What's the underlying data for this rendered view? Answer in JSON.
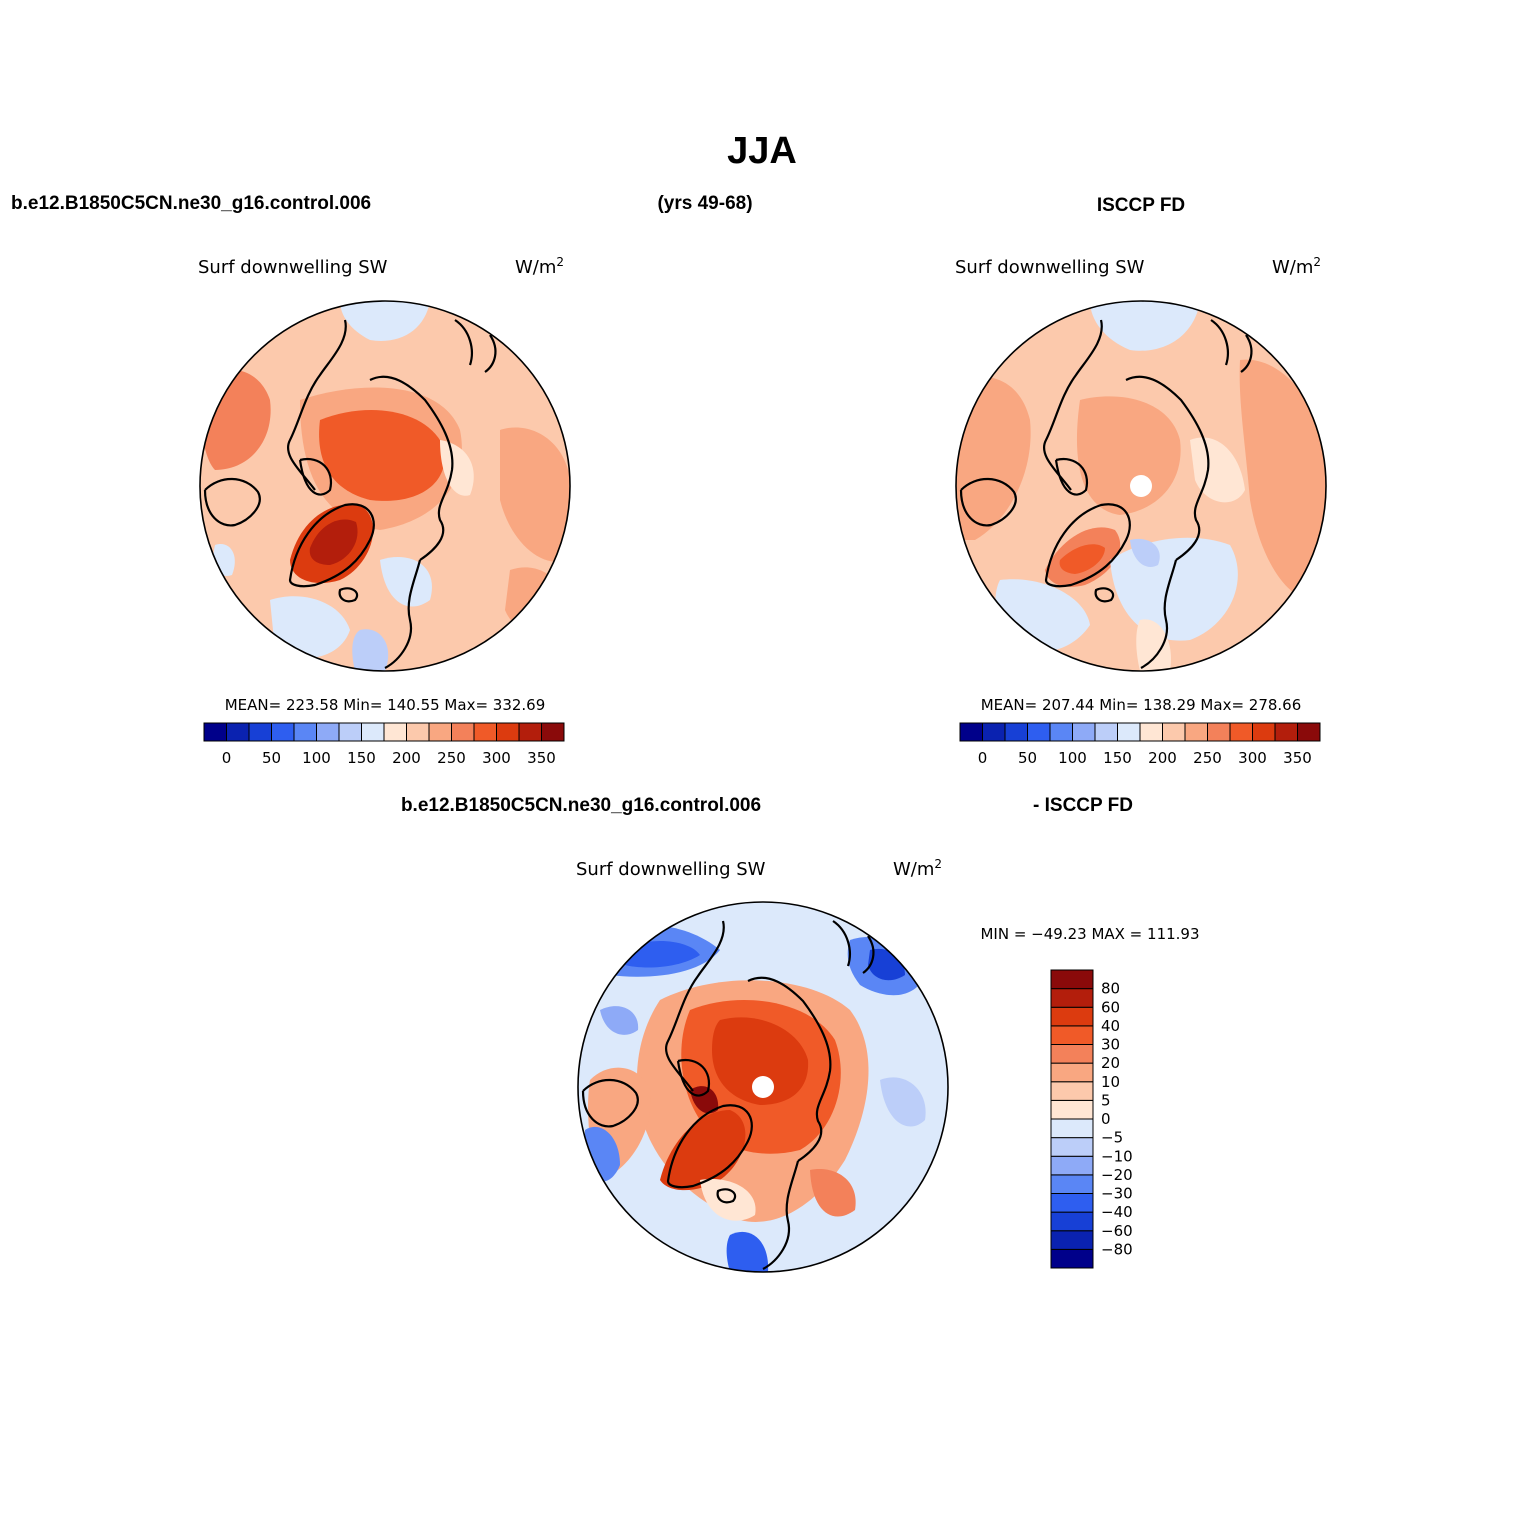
{
  "figure": {
    "title": "JJA",
    "header_case": "b.e12.B1850C5CN.ne30_g16.control.006",
    "header_years": "(yrs 49-68)",
    "header_obs": "ISCCP FD",
    "diff_header_case": "b.e12.B1850C5CN.ne30_g16.control.006",
    "diff_header_obs": "- ISCCP FD"
  },
  "panels": [
    {
      "id": "model",
      "variable": "Surf downwelling SW",
      "units": "W/m",
      "units_exp": "2",
      "stats": "MEAN= 223.58   Min= 140.55   Max= 332.69"
    },
    {
      "id": "obs",
      "variable": "Surf downwelling SW",
      "units": "W/m",
      "units_exp": "2",
      "stats": "MEAN= 207.44   Min= 138.29   Max= 278.66"
    },
    {
      "id": "diff",
      "variable": "Surf downwelling SW",
      "units": "W/m",
      "units_exp": "2",
      "stats": "MIN = −49.23 MAX = 111.93"
    }
  ],
  "abs_colorbar": {
    "colors": [
      "#00008a",
      "#0a22b0",
      "#1740d6",
      "#2e5ef0",
      "#5a86f5",
      "#8eaaf7",
      "#bccef9",
      "#dce9fb",
      "#ffe6d4",
      "#fcc9ac",
      "#f9a781",
      "#f3815a",
      "#f05a28",
      "#dc3b0f",
      "#b31e0c",
      "#8a0a0a"
    ],
    "labels": [
      "0",
      "50",
      "100",
      "150",
      "200",
      "250",
      "300",
      "350"
    ]
  },
  "diff_colorbar": {
    "colors": [
      "#00008a",
      "#0a22b0",
      "#1740d6",
      "#2e5ef0",
      "#5a86f5",
      "#8eaaf7",
      "#bccef9",
      "#dce9fb",
      "#ffe6d4",
      "#fcc9ac",
      "#f9a781",
      "#f3815a",
      "#f05a28",
      "#dc3b0f",
      "#b31e0c",
      "#8a0a0a"
    ],
    "labels": [
      "80",
      "60",
      "40",
      "30",
      "20",
      "10",
      "5",
      "0",
      "−5",
      "−10",
      "−20",
      "−30",
      "−40",
      "−60",
      "−80"
    ]
  }
}
